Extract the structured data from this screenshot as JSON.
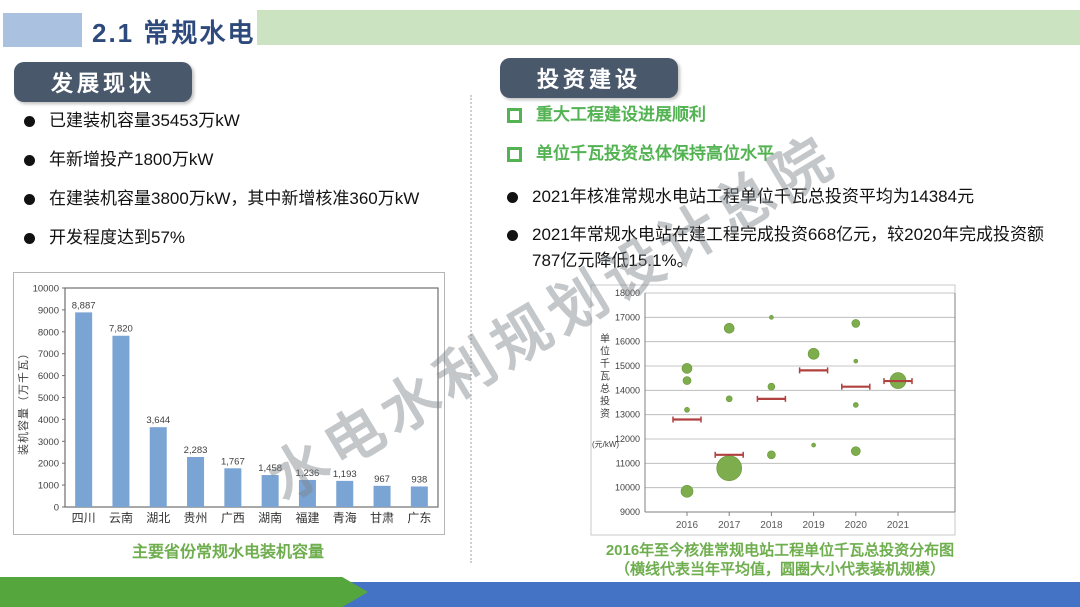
{
  "slide": {
    "title": "2.1 常规水电",
    "watermark": "水电水利规划设计总院"
  },
  "left": {
    "header": "发展现状",
    "bullets": [
      "已建装机容量35453万kW",
      "年新增投产1800万kW",
      "在建装机容量3800万kW，其中新增核准360万kW",
      "开发程度达到57%"
    ],
    "chart_caption": "主要省份常规水电装机容量"
  },
  "right": {
    "header": "投资建设",
    "green_bullets": [
      "重大工程建设进展顺利",
      "单位千瓦投资总体保持高位水平"
    ],
    "bullets": [
      "2021年核准常规水电站工程单位千瓦总投资平均为14384元",
      "2021年常规水电站在建工程完成投资668亿元，较2020年完成投资额787亿元降低15.1%。"
    ],
    "chart_caption_line1": "2016年至今核准常规电站工程单位千瓦总投资分布图",
    "chart_caption_line2": "（横线代表当年平均值，圆圈大小代表装机规模）"
  },
  "chart_data": [
    {
      "type": "bar",
      "title": "主要省份常规水电装机容量",
      "ylabel": "装机容量（万千瓦）",
      "categories": [
        "四川",
        "云南",
        "湖北",
        "贵州",
        "广西",
        "湖南",
        "福建",
        "青海",
        "甘肃",
        "广东"
      ],
      "values": [
        8887,
        7820,
        3644,
        2283,
        1767,
        1458,
        1236,
        1193,
        967,
        938
      ],
      "labels": [
        "8,887",
        "7,820",
        "3,644",
        "2,283",
        "1,767",
        "1,458",
        "1,236",
        "1,193",
        "967",
        "938"
      ],
      "ylim": [
        0,
        10000
      ],
      "ytick_step": 1000,
      "grid": false,
      "bar_color": "#7aa4d4"
    },
    {
      "type": "scatter",
      "subtype": "bubble",
      "title": "2016年至今核准常规电站工程单位千瓦总投资分布图",
      "subtitle": "（横线代表当年平均值，圆圈大小代表装机规模）",
      "ylabel": "单位千瓦总投资",
      "yunit": "(元/kW)",
      "x_categories": [
        2016,
        2017,
        2018,
        2019,
        2020,
        2021
      ],
      "ylim": [
        9000,
        18000
      ],
      "ytick_step": 1000,
      "grid": true,
      "bubble_color": "#7dad4c",
      "avg_line_color": "#b0413e",
      "bubbles": [
        {
          "x": 2016,
          "y": 14900,
          "r": 5
        },
        {
          "x": 2016,
          "y": 14400,
          "r": 4
        },
        {
          "x": 2016,
          "y": 13200,
          "r": 2.5
        },
        {
          "x": 2016,
          "y": 9850,
          "r": 6
        },
        {
          "x": 2017,
          "y": 16550,
          "r": 5
        },
        {
          "x": 2017,
          "y": 13650,
          "r": 3
        },
        {
          "x": 2017,
          "y": 10800,
          "r": 12.5
        },
        {
          "x": 2018,
          "y": 17000,
          "r": 2
        },
        {
          "x": 2018,
          "y": 14150,
          "r": 3.5
        },
        {
          "x": 2018,
          "y": 11350,
          "r": 4
        },
        {
          "x": 2019,
          "y": 15500,
          "r": 5.5
        },
        {
          "x": 2019,
          "y": 11750,
          "r": 2
        },
        {
          "x": 2020,
          "y": 16750,
          "r": 4
        },
        {
          "x": 2020,
          "y": 15200,
          "r": 2
        },
        {
          "x": 2020,
          "y": 13400,
          "r": 2.5
        },
        {
          "x": 2020,
          "y": 11500,
          "r": 4.5
        },
        {
          "x": 2021,
          "y": 14400,
          "r": 8
        }
      ],
      "avg_lines": [
        {
          "x": 2016,
          "y": 12800
        },
        {
          "x": 2017,
          "y": 11350
        },
        {
          "x": 2018,
          "y": 13650
        },
        {
          "x": 2019,
          "y": 14820
        },
        {
          "x": 2020,
          "y": 14150
        },
        {
          "x": 2021,
          "y": 14380
        }
      ]
    }
  ],
  "colors": {
    "accent_blue": "#aac1e0",
    "title_navy": "#2e4a7c",
    "top_green": "#cbe3c0",
    "pill_slate": "#4a586b",
    "green_text": "#53b353",
    "caption_green": "#6fae4e",
    "bar_blue": "#7aa4d4",
    "bubble_green": "#7dad4c",
    "avg_red": "#b0413e",
    "footer_blue": "#4473c5",
    "footer_green": "#56a63e"
  }
}
